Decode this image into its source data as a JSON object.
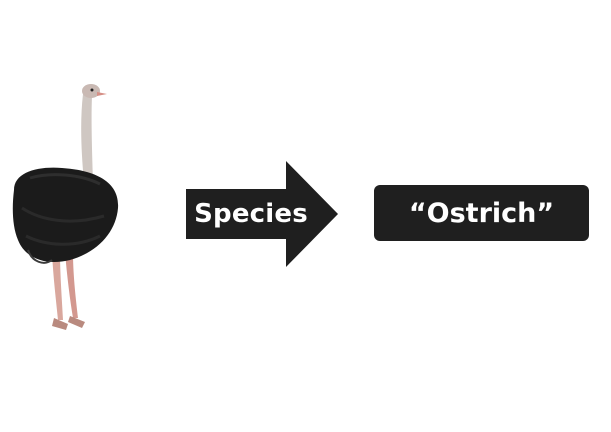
{
  "diagram": {
    "input": {
      "icon": "ostrich-icon"
    },
    "arrow": {
      "label": "Species",
      "color": "#1f1f1f"
    },
    "output": {
      "label": "“Ostrich”",
      "color": "#1f1f1f"
    }
  }
}
